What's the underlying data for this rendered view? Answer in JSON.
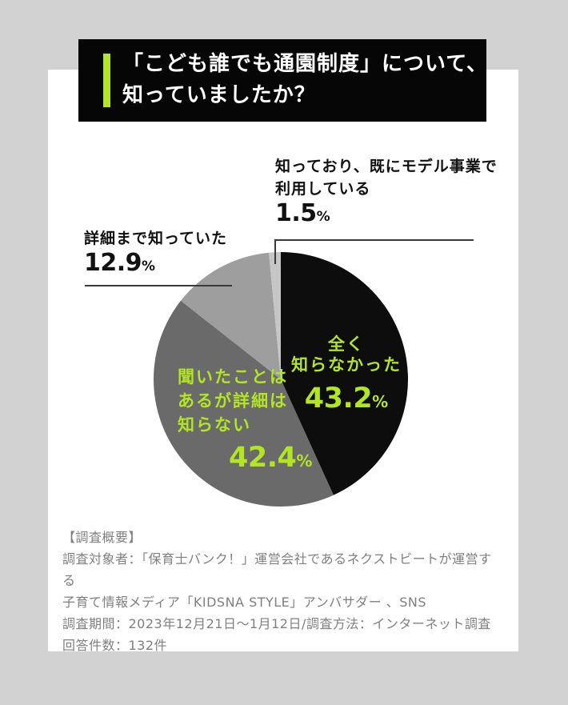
{
  "page": {
    "background_color": "#d2d2d2",
    "card_color": "#ffffff",
    "accent_color": "#b3e524",
    "banner_color": "#060606",
    "footer_text_color": "#7f7f7f"
  },
  "header": {
    "title_line1": "「こども誰でも通園制度」について、",
    "title_line2": "知っていましたか？"
  },
  "chart_data": {
    "type": "pie",
    "title": "「こども誰でも通園制度」について、知っていましたか？",
    "unit_symbol": "%",
    "start_angle_deg": 0,
    "direction": "clockwise",
    "slices": [
      {
        "label": "全く知らなかった",
        "display_lines": [
          "全く",
          "知らなかった"
        ],
        "value": 43.2,
        "color": "#0d0d0d",
        "label_color": "#b3e524",
        "label_position": "inside"
      },
      {
        "label": "聞いたことはあるが詳細は知らない",
        "display_lines": [
          "聞いたことは",
          "あるが詳細は",
          "知らない"
        ],
        "value": 42.4,
        "color": "#6a6a6a",
        "label_color": "#b3e524",
        "label_position": "inside"
      },
      {
        "label": "詳細まで知っていた",
        "display_lines": [
          "詳細まで知っていた"
        ],
        "value": 12.9,
        "color": "#9e9e9e",
        "label_color": "#111111",
        "label_position": "outside-left"
      },
      {
        "label": "知っており、既にモデル事業で利用している",
        "display_lines": [
          "知っており、既にモデル事業で",
          "利用している"
        ],
        "value": 1.5,
        "color": "#c6c6c6",
        "label_color": "#111111",
        "label_position": "outside-top"
      }
    ]
  },
  "footer": {
    "lines": [
      "【調査概要】",
      "調査対象者：「保育士バンク！」運営会社であるネクストビートが運営する",
      "子育て情報メディア「KIDSNA STYLE」アンバサダー 、SNS",
      "調査期間：2023年12月21日～1月12日/調査方法：インターネット調査",
      "回答件数：132件"
    ]
  }
}
